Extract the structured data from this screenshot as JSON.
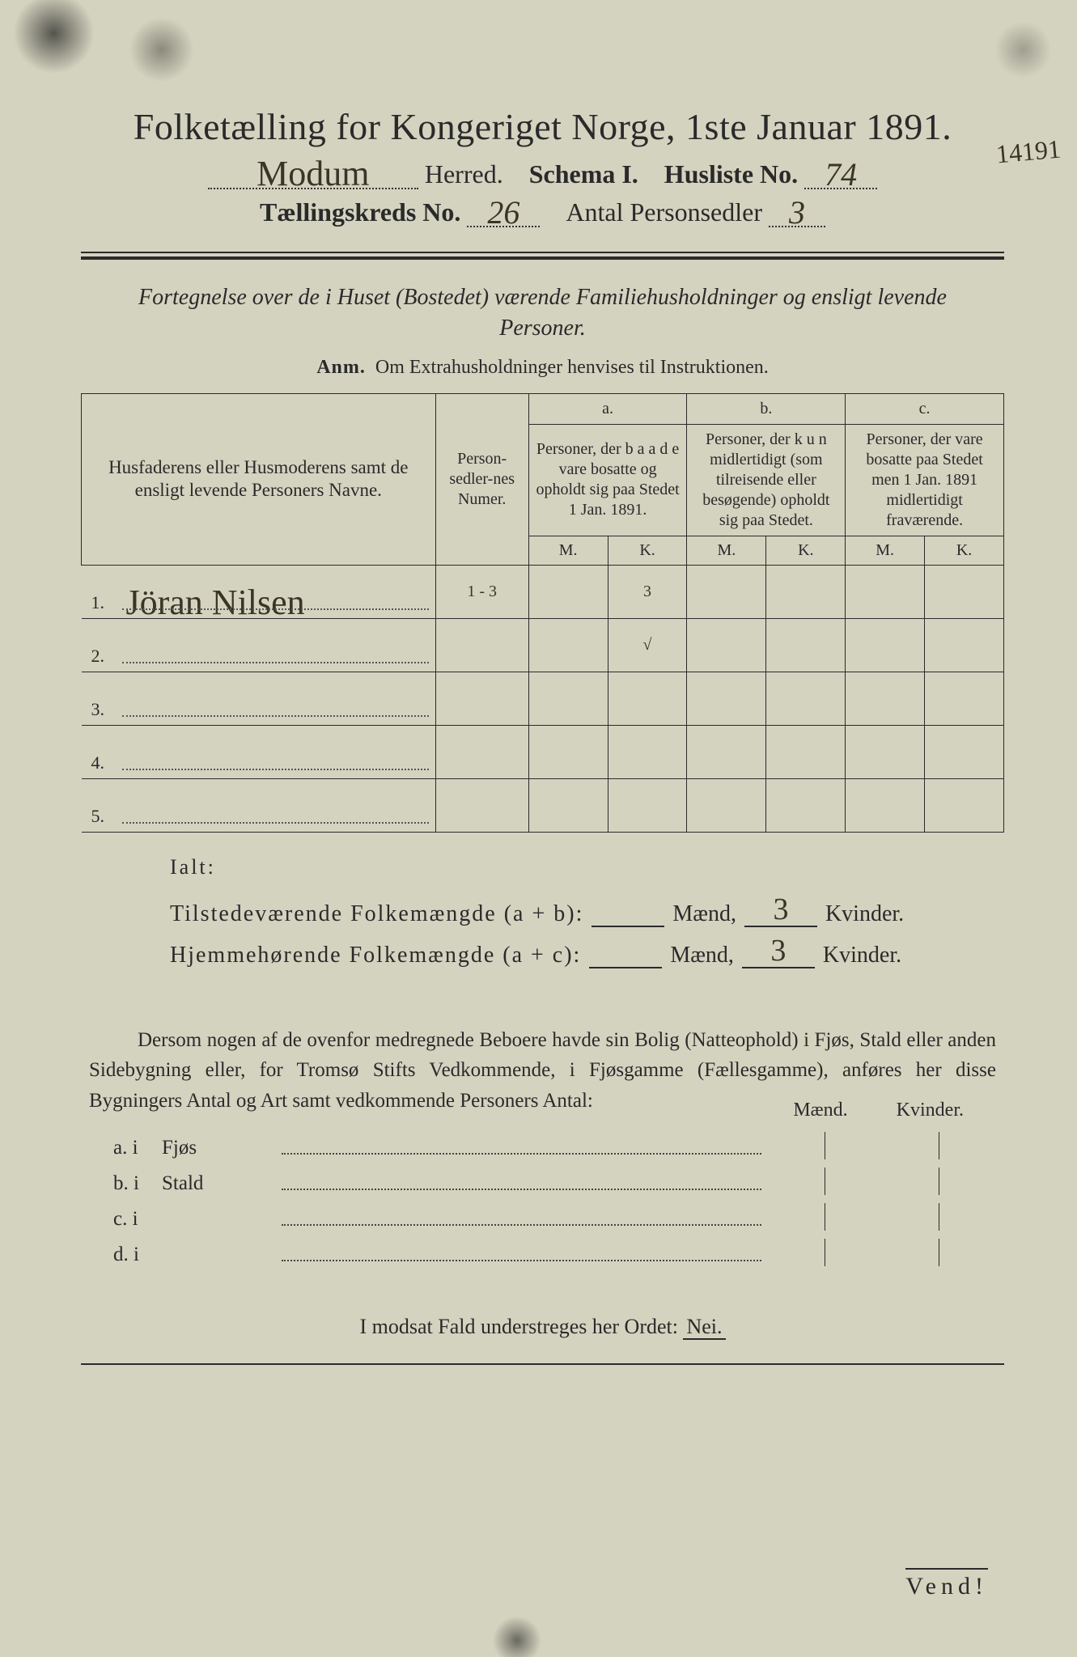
{
  "colors": {
    "paper": "#d4d3c0",
    "ink": "#2a2a2a",
    "handwriting": "#3a3528",
    "outer": "#1a1a1a"
  },
  "title": "Folketælling for Kongeriget Norge, 1ste Januar 1891.",
  "header": {
    "herred_hw": "Modum",
    "herred_label": "Herred.",
    "schema_label": "Schema I.",
    "husliste_label": "Husliste No.",
    "husliste_hw": "74",
    "kreds_label": "Tællingskreds No.",
    "kreds_hw": "26",
    "antal_label": "Antal Personsedler",
    "antal_hw": "3",
    "margin_note": "14191"
  },
  "subtitle": "Fortegnelse over de i Huset (Bostedet) værende Familiehusholdninger og ensligt levende Personer.",
  "anm_label": "Anm.",
  "anm_text": "Om Extrahusholdninger henvises til Instruktionen.",
  "table": {
    "columns": {
      "name": "Husfaderens eller Husmoderens samt de ensligt levende Personers Navne.",
      "num": "Person-sedler-nes Numer.",
      "a_label": "a.",
      "a_text": "Personer, der b a a d e vare bosatte og opholdt sig paa Stedet 1 Jan. 1891.",
      "b_label": "b.",
      "b_text": "Personer, der k u n midlertidigt (som tilreisende eller besøgende) opholdt sig paa Stedet.",
      "c_label": "c.",
      "c_text": "Personer, der vare bosatte paa Stedet men 1 Jan. 1891 midlertidigt fraværende.",
      "m": "M.",
      "k": "K."
    },
    "rows": [
      {
        "idx": "1.",
        "name_hw": "Jöran Nilsen",
        "num_hw": "1 - 3",
        "a_m": "",
        "a_k": "3",
        "b_m": "",
        "b_k": "",
        "c_m": "",
        "c_k": ""
      },
      {
        "idx": "2.",
        "name_hw": "",
        "num_hw": "",
        "a_m": "",
        "a_k": "√",
        "b_m": "",
        "b_k": "",
        "c_m": "",
        "c_k": ""
      },
      {
        "idx": "3.",
        "name_hw": "",
        "num_hw": "",
        "a_m": "",
        "a_k": "",
        "b_m": "",
        "b_k": "",
        "c_m": "",
        "c_k": ""
      },
      {
        "idx": "4.",
        "name_hw": "",
        "num_hw": "",
        "a_m": "",
        "a_k": "",
        "b_m": "",
        "b_k": "",
        "c_m": "",
        "c_k": ""
      },
      {
        "idx": "5.",
        "name_hw": "",
        "num_hw": "",
        "a_m": "",
        "a_k": "",
        "b_m": "",
        "b_k": "",
        "c_m": "",
        "c_k": ""
      }
    ]
  },
  "ialt": {
    "title": "Ialt:",
    "line1_label": "Tilstedeværende Folkemængde (a + b):",
    "line2_label": "Hjemmehørende Folkemængde (a + c):",
    "maend": "Mænd,",
    "kvinder": "Kvinder.",
    "line1_m": "",
    "line1_k": "3",
    "line2_m": "",
    "line2_k": "3"
  },
  "paragraph": "Dersom nogen af de ovenfor medregnede Beboere havde sin Bolig (Natteophold) i Fjøs, Stald eller anden Sidebygning eller, for Tromsø Stifts Vedkommende, i Fjøsgamme (Fællesgamme), anføres her disse Bygningers Antal og Art samt vedkommende Personers Antal:",
  "bygning": {
    "hdr_m": "Mænd.",
    "hdr_k": "Kvinder.",
    "rows": [
      {
        "label": "a.  i",
        "type": "Fjøs"
      },
      {
        "label": "b.  i",
        "type": "Stald"
      },
      {
        "label": "c.  i",
        "type": ""
      },
      {
        "label": "d.  i",
        "type": ""
      }
    ]
  },
  "nei_line_pre": "I modsat Fald understreges her Ordet: ",
  "nei_word": "Nei.",
  "vend": "Vend!"
}
